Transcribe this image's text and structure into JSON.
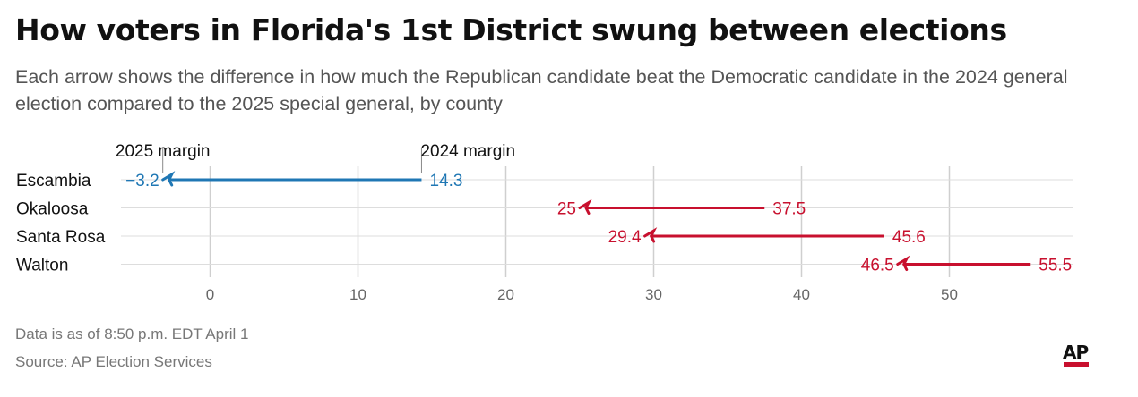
{
  "title": "How voters in Florida's 1st District swung between elections",
  "subtitle": "Each arrow shows the difference in how much the Republican candidate beat the Democratic candidate in the 2024 general election compared to the 2025 special general, by county",
  "footnote": "Data is as of 8:50 p.m. EDT April 1",
  "source": "Source: AP Election Services",
  "logo_text": "AP",
  "colors": {
    "swing_blue": "#1f77b4",
    "swing_red": "#c8102e",
    "grid": "#cfcfcf",
    "text": "#222222",
    "tick": "#666666"
  },
  "chart_data": {
    "type": "arrow",
    "legend": {
      "start_label": "2024 margin",
      "end_label": "2025 margin"
    },
    "categories": [
      "Escambia",
      "Okaloosa",
      "Santa Rosa",
      "Walton"
    ],
    "series": [
      {
        "name": "2024 margin",
        "values": [
          14.3,
          37.5,
          45.6,
          55.5
        ]
      },
      {
        "name": "2025 margin",
        "values": [
          -3.2,
          25,
          29.4,
          46.5
        ]
      }
    ],
    "value_labels_2024": [
      "14.3",
      "37.5",
      "45.6",
      "55.5"
    ],
    "value_labels_2025": [
      "−3.2",
      "25",
      "29.4",
      "46.5"
    ],
    "arrow_colors": [
      "#1f77b4",
      "#c8102e",
      "#c8102e",
      "#c8102e"
    ],
    "x_ticks": [
      0,
      10,
      20,
      30,
      40,
      50
    ],
    "x_tick_labels": [
      "0",
      "10",
      "20",
      "30",
      "40",
      "50"
    ],
    "xlim": [
      -6,
      57.5
    ],
    "grid": true
  }
}
